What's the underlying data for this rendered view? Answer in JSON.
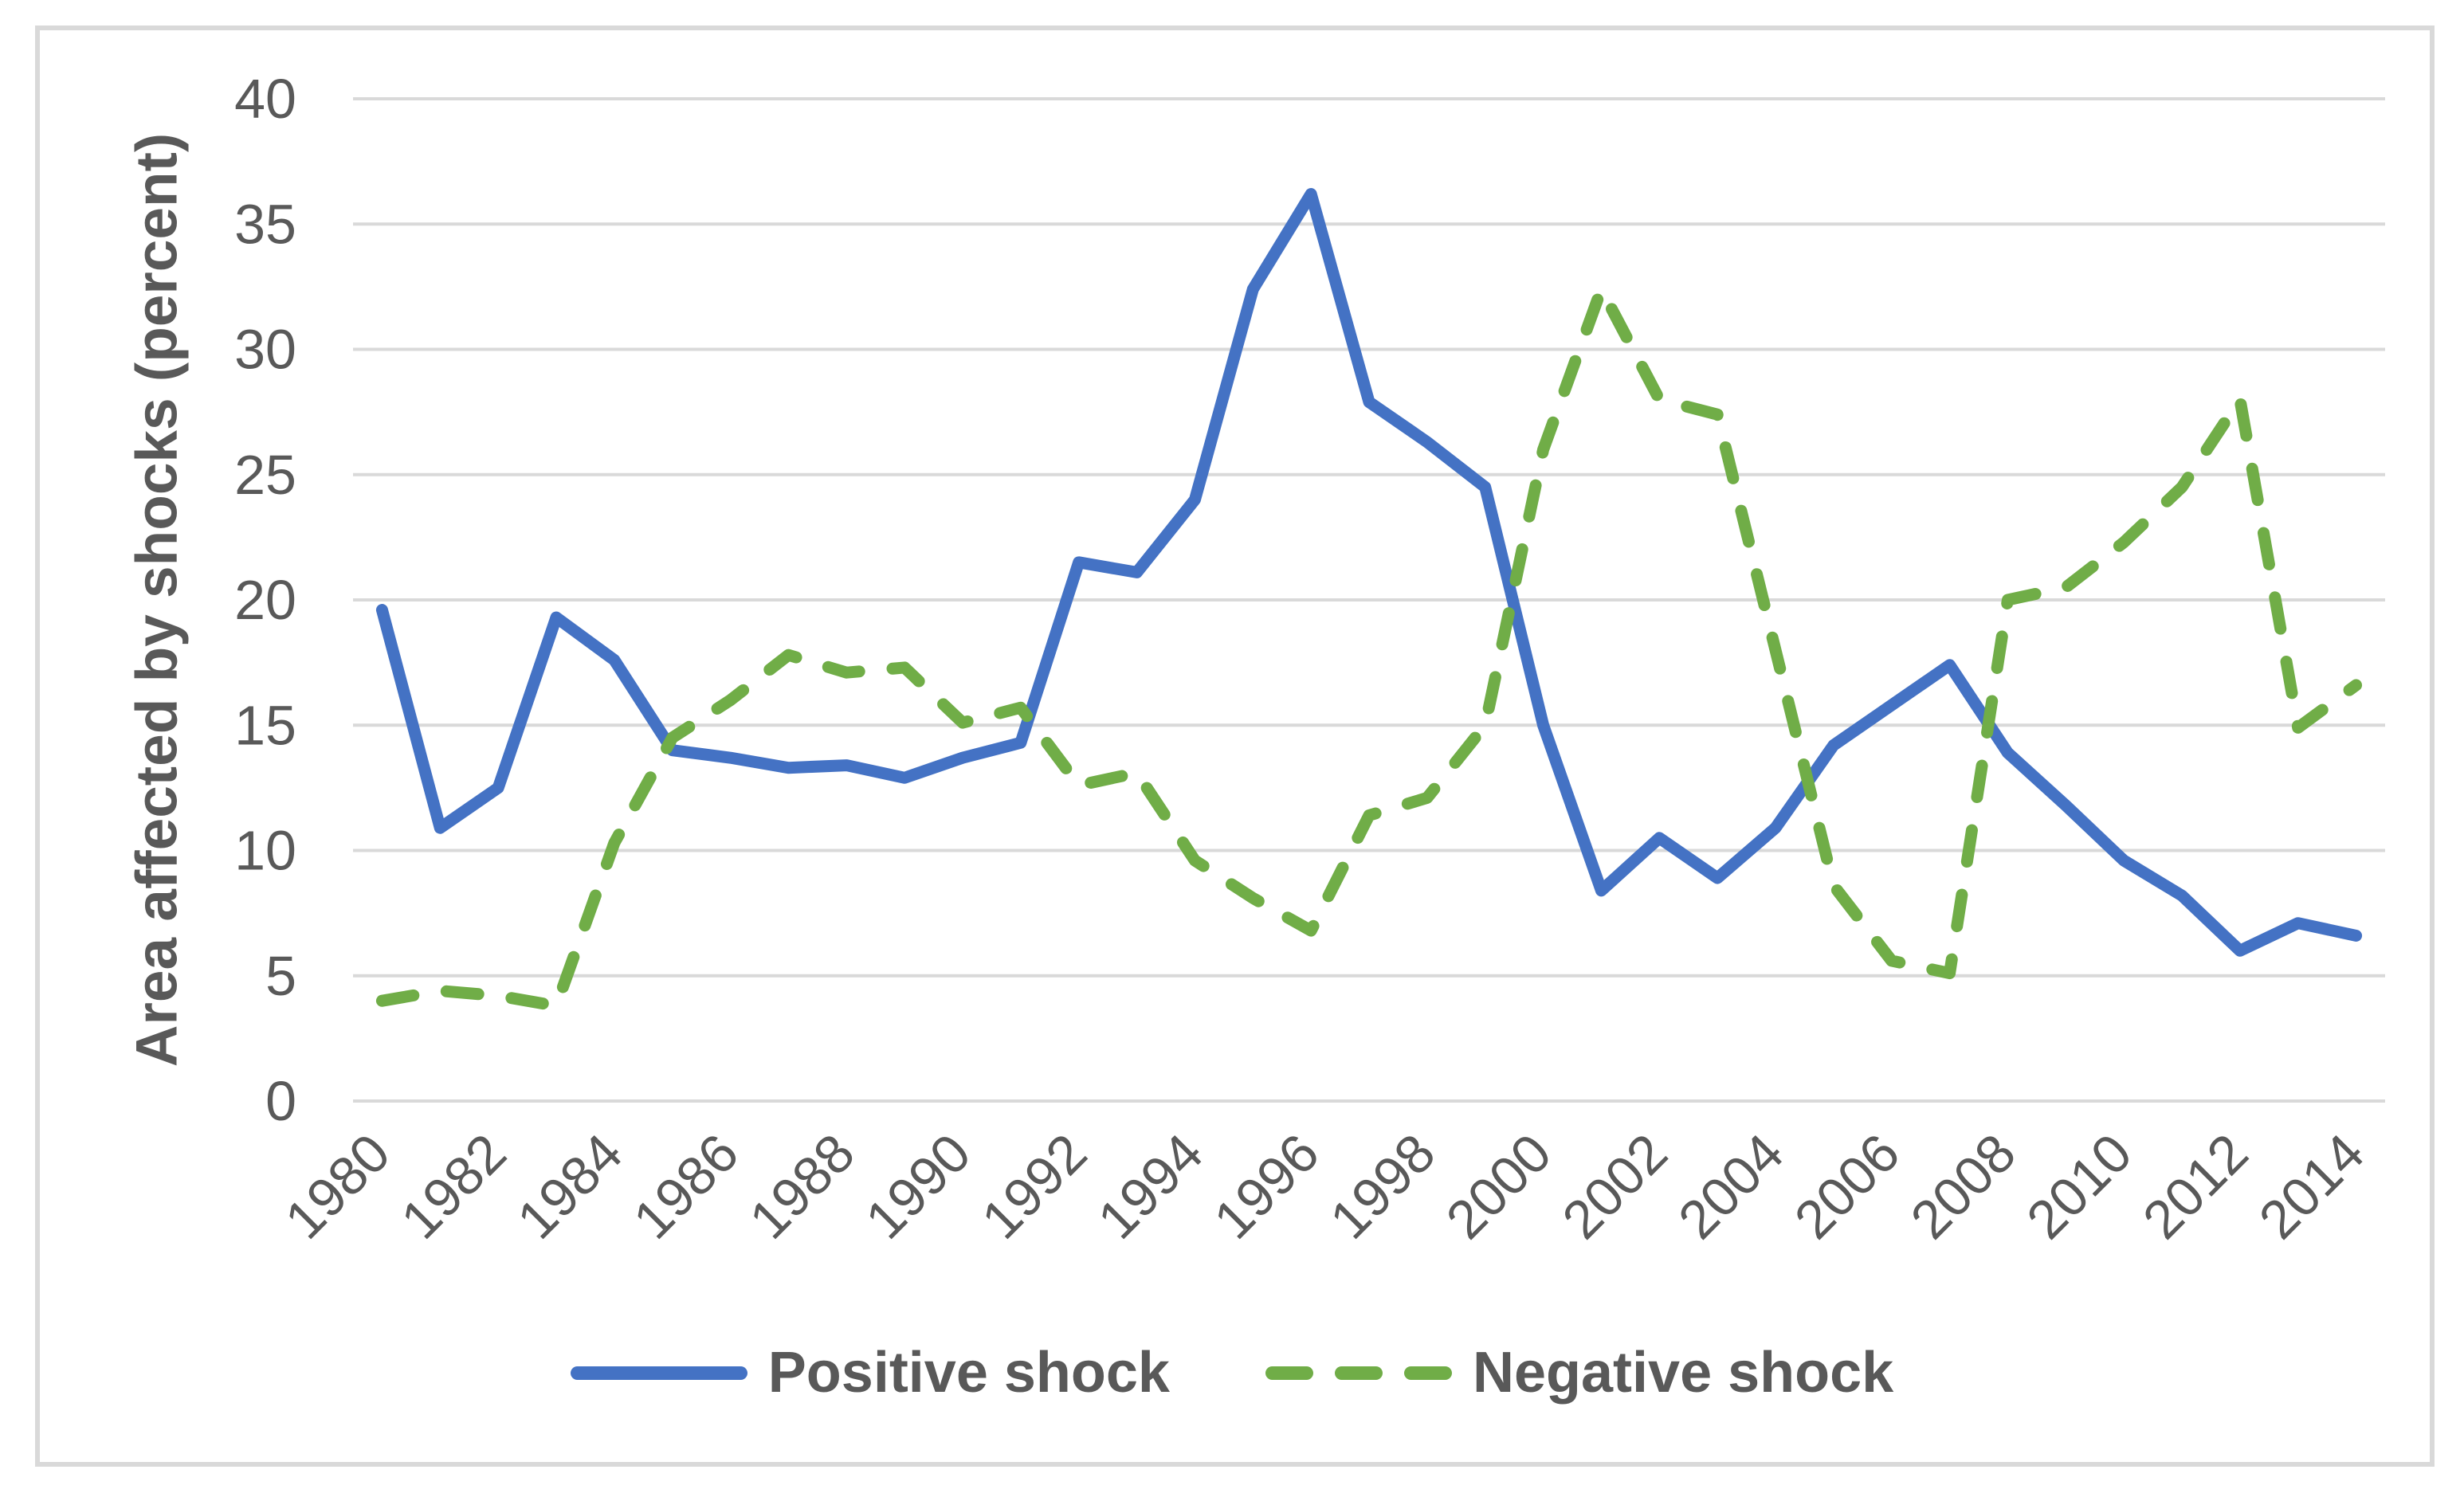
{
  "chart_data": {
    "type": "line",
    "title": "",
    "ylabel": "Area affected by shocks (percent)",
    "xlabel": "",
    "ylim": [
      0,
      40
    ],
    "yticks": [
      0,
      5,
      10,
      15,
      20,
      25,
      30,
      35,
      40
    ],
    "grid": true,
    "legend_position": "bottom",
    "x": [
      1980,
      1981,
      1982,
      1983,
      1984,
      1985,
      1986,
      1987,
      1988,
      1989,
      1990,
      1991,
      1992,
      1993,
      1994,
      1995,
      1996,
      1997,
      1998,
      1999,
      2000,
      2001,
      2002,
      2003,
      2004,
      2005,
      2006,
      2007,
      2008,
      2009,
      2010,
      2011,
      2012,
      2013,
      2014
    ],
    "xtick_labels": [
      "1980",
      "1982",
      "1984",
      "1986",
      "1988",
      "1990",
      "1992",
      "1994",
      "1996",
      "1998",
      "2000",
      "2002",
      "2004",
      "2006",
      "2008",
      "2010",
      "2012",
      "2014"
    ],
    "series": [
      {
        "name": "Positive shock",
        "style": "solid",
        "color": "#4472C4",
        "values": [
          19.6,
          10.9,
          12.5,
          19.3,
          17.6,
          14.0,
          13.7,
          13.3,
          13.4,
          12.9,
          13.7,
          14.3,
          21.5,
          21.1,
          24.0,
          32.4,
          36.2,
          27.9,
          26.3,
          24.5,
          15.0,
          8.4,
          10.5,
          8.9,
          10.9,
          14.2,
          15.8,
          17.4,
          13.9,
          11.8,
          9.6,
          8.2,
          6.0,
          7.1,
          6.6
        ]
      },
      {
        "name": "Negative shock",
        "style": "dashed",
        "color": "#70AD47",
        "values": [
          4.0,
          4.4,
          4.2,
          3.8,
          10.3,
          14.5,
          16.0,
          17.8,
          17.1,
          17.3,
          15.1,
          15.7,
          12.6,
          13.1,
          9.6,
          8.1,
          6.8,
          11.4,
          12.1,
          15.0,
          26.0,
          32.4,
          28.0,
          27.4,
          18.0,
          8.6,
          5.6,
          5.1,
          20.0,
          20.5,
          22.3,
          24.5,
          28.0,
          14.9,
          16.6
        ]
      }
    ]
  },
  "colors": {
    "grid": "#D9D9D9",
    "border": "#D9D9D9",
    "tick_text": "#595959",
    "axis_title_text": "#595959",
    "background": "#FFFFFF"
  }
}
